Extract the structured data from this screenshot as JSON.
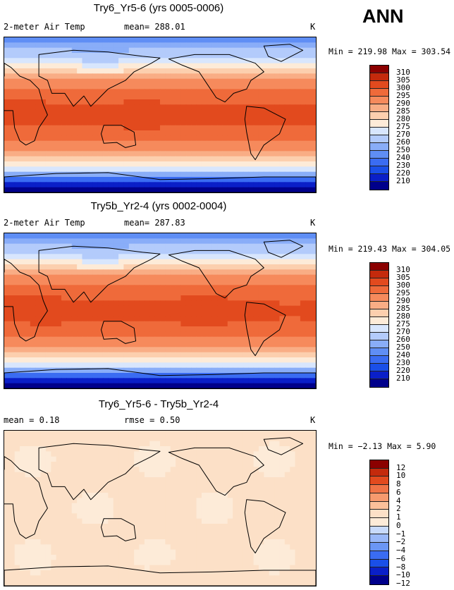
{
  "season_label": "ANN",
  "colors": {
    "temp_scale": [
      "#00008b",
      "#0a1fc8",
      "#1a4fe8",
      "#3a6cf2",
      "#5f8ef5",
      "#89adf8",
      "#b3cbfb",
      "#d8e6fd",
      "#fdebd8",
      "#fccfae",
      "#f9ad85",
      "#f68a5c",
      "#ef6a3a",
      "#e24a1e",
      "#c42a0c",
      "#8b0000"
    ],
    "diff_scale": [
      "#00008b",
      "#0a1fc8",
      "#1a4fe8",
      "#3a6cf2",
      "#6b96f5",
      "#9ab8f8",
      "#c8dafb",
      "#fdebd8",
      "#fce0c7",
      "#fbc09a",
      "#f79a6e",
      "#f07346",
      "#e24a1e",
      "#c42a0c",
      "#8b0000"
    ]
  },
  "panels": [
    {
      "title": "Try6_Yr5-6 (yrs 0005-0006)",
      "left_label": "2-meter Air Temp",
      "center_label": "mean= 288.01",
      "units": "K",
      "min_max": "Min = 219.98 Max = 303.54"
    },
    {
      "title": "Try5b_Yr2-4 (yrs 0002-0004)",
      "left_label": "2-meter Air Temp",
      "center_label": "mean= 287.83",
      "units": "K",
      "min_max": "Min = 219.43 Max = 304.05"
    },
    {
      "title": "Try6_Yr5-6 - Try5b_Yr2-4",
      "left_label": "mean =   0.18",
      "center_label": "rmse =   0.50",
      "units": "K",
      "min_max": "Min = −2.13 Max =   5.90"
    }
  ],
  "chart_data": [
    {
      "type": "heatmap",
      "title": "Try6_Yr5-6 (yrs 0005-0006)",
      "variable": "2-meter Air Temp",
      "mean": 288.01,
      "min": 219.98,
      "max": 303.54,
      "units": "K",
      "colorbar_levels": [
        310,
        305,
        300,
        295,
        290,
        285,
        280,
        275,
        270,
        260,
        250,
        240,
        230,
        220,
        210
      ]
    },
    {
      "type": "heatmap",
      "title": "Try5b_Yr2-4 (yrs 0002-0004)",
      "variable": "2-meter Air Temp",
      "mean": 287.83,
      "min": 219.43,
      "max": 304.05,
      "units": "K",
      "colorbar_levels": [
        310,
        305,
        300,
        295,
        290,
        285,
        280,
        275,
        270,
        260,
        250,
        240,
        230,
        220,
        210
      ]
    },
    {
      "type": "heatmap",
      "title": "Try6_Yr5-6 - Try5b_Yr2-4",
      "variable": "difference",
      "mean": 0.18,
      "rmse": 0.5,
      "min": -2.13,
      "max": 5.9,
      "units": "K",
      "colorbar_levels": [
        12,
        10,
        8,
        6,
        4,
        2,
        1,
        0,
        -1,
        -2,
        -4,
        -6,
        -8,
        -10,
        -12
      ]
    }
  ]
}
